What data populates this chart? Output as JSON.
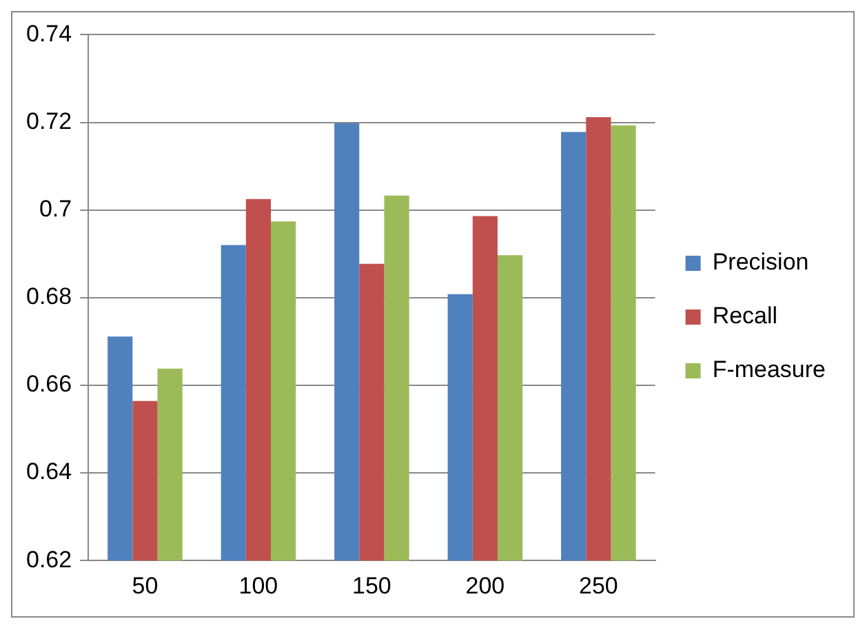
{
  "chart_data": {
    "type": "bar",
    "categories": [
      "50",
      "100",
      "150",
      "200",
      "250"
    ],
    "series": [
      {
        "name": "Precision",
        "color": "#4f81bd",
        "values": [
          0.6711,
          0.692,
          0.7198,
          0.6808,
          0.7178
        ]
      },
      {
        "name": "Recall",
        "color": "#c0504d",
        "values": [
          0.6564,
          0.7025,
          0.6877,
          0.6986,
          0.7212
        ]
      },
      {
        "name": "F-measure",
        "color": "#9bbb59",
        "values": [
          0.6638,
          0.6974,
          0.7033,
          0.6897,
          0.7193
        ]
      }
    ],
    "ylim": [
      0.62,
      0.74
    ],
    "yticks": [
      0.62,
      0.64,
      0.66,
      0.68,
      0.7,
      0.72,
      0.74
    ],
    "grid": "y",
    "legend": "right"
  }
}
